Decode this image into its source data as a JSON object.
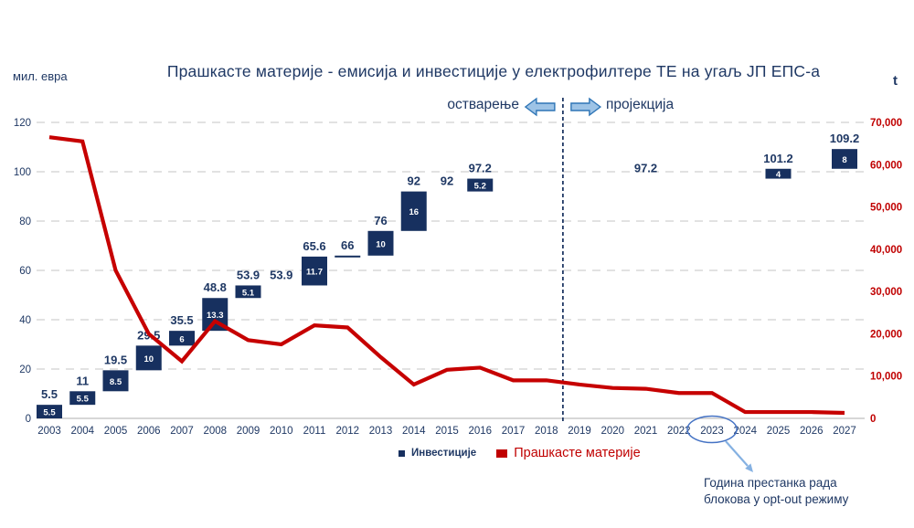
{
  "header": {
    "title": "Прашкасте материје - емисија и инвестиције у електрофилтере ТЕ на угаљ ЈП ЕПС-а",
    "left_axis_unit": "мил. евра",
    "right_axis_unit": "t",
    "phase_left": "остварење",
    "phase_right": "пројекција"
  },
  "legend": {
    "investments": "Инвестиције",
    "particulates": "Прашкасте материје"
  },
  "annotation": {
    "line1": "Година престанка рада",
    "line2": "блокова у opt-out режиму",
    "circled_year": 2023
  },
  "colors": {
    "navy_text": "#1F3864",
    "bar_fill": "#17305F",
    "bar_label": "#FFFFFF",
    "line_red": "#C60000",
    "right_axis_red": "#C00000",
    "gridline": "#D9D9D9",
    "baseline": "#BFBFBF",
    "divider": "#1F3864",
    "block_arrow_fill": "#9DC3E6",
    "block_arrow_stroke": "#2E75B6",
    "callout_blue": "#85B1E2",
    "circle_stroke": "#4472C4"
  },
  "chart_data": {
    "type": "combo: cumulative waterfall bar (left axis) + line (right axis)",
    "title": "Прашкасте материје - емисија и инвестиције у електрофилтере ТЕ на угаљ ЈП ЕПС-а",
    "x": [
      2003,
      2004,
      2005,
      2006,
      2007,
      2008,
      2009,
      2010,
      2011,
      2012,
      2013,
      2014,
      2015,
      2016,
      2017,
      2018,
      2019,
      2020,
      2021,
      2022,
      2023,
      2024,
      2025,
      2026,
      2027
    ],
    "left_axis": {
      "label": "мил. евра",
      "range": [
        0,
        120
      ],
      "ticks": [
        0,
        20,
        40,
        60,
        80,
        100,
        120
      ],
      "grid": "dashed"
    },
    "right_axis": {
      "label": "t",
      "range": [
        0,
        70000
      ],
      "ticks": [
        {
          "v": 0,
          "label": "0"
        },
        {
          "v": 10000,
          "label": "10,000"
        },
        {
          "v": 20000,
          "label": "20,000"
        },
        {
          "v": 30000,
          "label": "30,000"
        },
        {
          "v": 40000,
          "label": "40,000"
        },
        {
          "v": 50000,
          "label": "50,000"
        },
        {
          "v": 60000,
          "label": "60,000"
        },
        {
          "v": 70000,
          "label": "70,000"
        }
      ]
    },
    "divider_after_year": 2018,
    "bars": [
      {
        "year": 2003,
        "from": 0,
        "to": 5.5,
        "delta": "5.5",
        "total": "5.5"
      },
      {
        "year": 2004,
        "from": 5.5,
        "to": 11,
        "delta": "5.5",
        "total": "11"
      },
      {
        "year": 2005,
        "from": 11,
        "to": 19.5,
        "delta": "8.5",
        "total": "19.5"
      },
      {
        "year": 2006,
        "from": 19.5,
        "to": 29.5,
        "delta": "10",
        "total": "29.5"
      },
      {
        "year": 2007,
        "from": 29.5,
        "to": 35.5,
        "delta": "6",
        "total": "35.5"
      },
      {
        "year": 2008,
        "from": 35.5,
        "to": 48.8,
        "delta": "13.3",
        "total": "48.8"
      },
      {
        "year": 2009,
        "from": 48.8,
        "to": 53.9,
        "delta": "5.1",
        "total": "53.9"
      },
      {
        "year": 2010,
        "from": 53.9,
        "to": 53.9,
        "delta": "",
        "total": "53.9"
      },
      {
        "year": 2011,
        "from": 53.9,
        "to": 65.6,
        "delta": "11.7",
        "total": "65.6"
      },
      {
        "year": 2012,
        "from": 65.6,
        "to": 66,
        "delta": "",
        "total": "66"
      },
      {
        "year": 2013,
        "from": 66,
        "to": 76,
        "delta": "10",
        "total": "76"
      },
      {
        "year": 2014,
        "from": 76,
        "to": 92,
        "delta": "16",
        "total": "92"
      },
      {
        "year": 2015,
        "from": 92,
        "to": 92,
        "delta": "",
        "total": "92"
      },
      {
        "year": 2016,
        "from": 92,
        "to": 97.2,
        "delta": "5.2",
        "total": "97.2"
      },
      {
        "year": 2021,
        "from": 97.2,
        "to": 97.2,
        "delta": "",
        "total": "97.2"
      },
      {
        "year": 2025,
        "from": 97.2,
        "to": 101.2,
        "delta": "4",
        "total": "101.2"
      },
      {
        "year": 2027,
        "from": 101.2,
        "to": 109.2,
        "delta": "8",
        "total": "109.2"
      }
    ],
    "line": {
      "name": "Прашкасте материје",
      "axis": "right",
      "values": [
        66500,
        65500,
        35000,
        20000,
        13500,
        23000,
        18500,
        17500,
        22000,
        21500,
        14500,
        8000,
        11500,
        12000,
        9000,
        9000,
        8000,
        7200,
        7000,
        6000,
        6000,
        1500,
        1500,
        1500,
        1300
      ]
    }
  }
}
